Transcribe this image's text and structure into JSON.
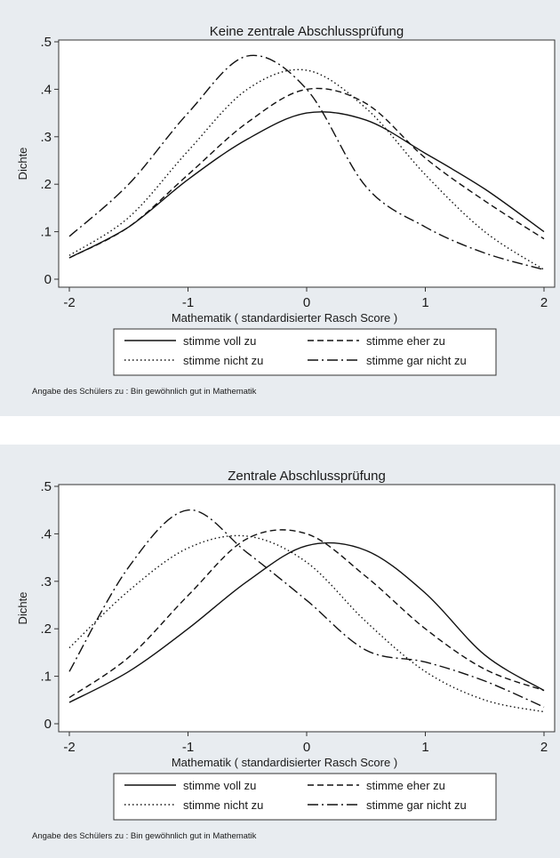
{
  "chart_data": [
    {
      "type": "line",
      "title": "Keine zentrale Abschlussprüfung",
      "xlabel": "Mathematik ( standardisierter Rasch Score )",
      "ylabel": "Dichte",
      "xlim": [
        -2,
        2
      ],
      "ylim": [
        0,
        0.5
      ],
      "xticks": [
        -2,
        -1,
        0,
        1,
        2
      ],
      "xtick_labels": [
        "-2",
        "-1",
        "0",
        "1",
        "2"
      ],
      "yticks": [
        0,
        0.1,
        0.2,
        0.3,
        0.4,
        0.5
      ],
      "ytick_labels": [
        "0",
        ".1",
        ".2",
        ".3",
        ".4",
        ".5"
      ],
      "legend_position": "bottom",
      "note": "Angabe des Schülers zu : Bin gewöhnlich gut in Mathematik",
      "x": [
        -2.0,
        -1.5,
        -1.0,
        -0.5,
        0.0,
        0.5,
        1.0,
        1.5,
        2.0
      ],
      "series": [
        {
          "name": "stimme voll zu",
          "dash": "solid",
          "values": [
            0.045,
            0.11,
            0.21,
            0.295,
            0.35,
            0.335,
            0.265,
            0.19,
            0.1
          ]
        },
        {
          "name": "stimme eher zu",
          "dash": "dashed",
          "values": [
            0.045,
            0.11,
            0.22,
            0.33,
            0.4,
            0.37,
            0.255,
            0.165,
            0.085
          ]
        },
        {
          "name": "stimme nicht zu",
          "dash": "dotted",
          "values": [
            0.05,
            0.13,
            0.27,
            0.4,
            0.44,
            0.36,
            0.22,
            0.1,
            0.02
          ]
        },
        {
          "name": "stimme gar nicht zu",
          "dash": "dashdot",
          "values": [
            0.09,
            0.2,
            0.35,
            0.47,
            0.4,
            0.195,
            0.11,
            0.055,
            0.02
          ]
        }
      ]
    },
    {
      "type": "line",
      "title": "Zentrale Abschlussprüfung",
      "xlabel": "Mathematik ( standardisierter Rasch Score )",
      "ylabel": "Dichte",
      "xlim": [
        -2,
        2
      ],
      "ylim": [
        0,
        0.5
      ],
      "xticks": [
        -2,
        -1,
        0,
        1,
        2
      ],
      "xtick_labels": [
        "-2",
        "-1",
        "0",
        "1",
        "2"
      ],
      "yticks": [
        0,
        0.1,
        0.2,
        0.3,
        0.4,
        0.5
      ],
      "ytick_labels": [
        "0",
        ".1",
        ".2",
        ".3",
        ".4",
        ".5"
      ],
      "legend_position": "bottom",
      "note": "Angabe des Schülers zu : Bin gewöhnlich gut in Mathematik",
      "x": [
        -2.0,
        -1.5,
        -1.0,
        -0.5,
        0.0,
        0.5,
        1.0,
        1.5,
        2.0
      ],
      "series": [
        {
          "name": "stimme voll zu",
          "dash": "solid",
          "values": [
            0.045,
            0.11,
            0.2,
            0.3,
            0.375,
            0.365,
            0.275,
            0.145,
            0.07
          ]
        },
        {
          "name": "stimme eher zu",
          "dash": "dashed",
          "values": [
            0.055,
            0.14,
            0.27,
            0.39,
            0.4,
            0.31,
            0.2,
            0.115,
            0.07
          ]
        },
        {
          "name": "stimme nicht zu",
          "dash": "dotted",
          "values": [
            0.16,
            0.28,
            0.37,
            0.395,
            0.34,
            0.215,
            0.11,
            0.05,
            0.025
          ]
        },
        {
          "name": "stimme gar nicht zu",
          "dash": "dashdot",
          "values": [
            0.11,
            0.33,
            0.45,
            0.36,
            0.26,
            0.155,
            0.13,
            0.09,
            0.035
          ]
        }
      ]
    }
  ]
}
